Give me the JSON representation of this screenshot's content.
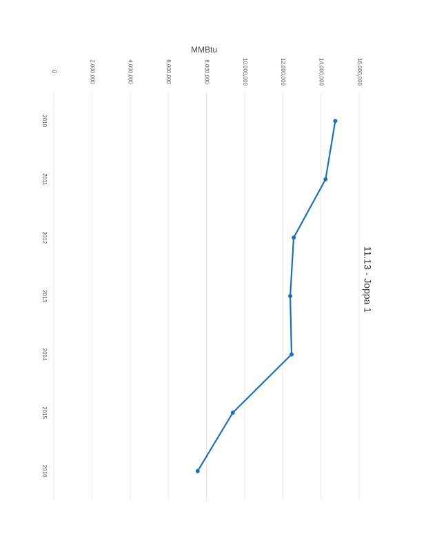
{
  "chart_data": {
    "type": "line",
    "title": "11.13 - Joppa 1",
    "value_axis_label": "MMBtu",
    "categories": [
      "2010",
      "2011",
      "2012",
      "2013",
      "2014",
      "2015",
      "2016"
    ],
    "series": [
      {
        "name": "Joppa 1",
        "color": "#1f6fb4",
        "values": [
          14750000,
          14240000,
          12570000,
          12390000,
          12460000,
          9380000,
          7540000
        ]
      }
    ],
    "ylim": [
      0,
      16000000
    ],
    "yticks": [
      0,
      {
        "value": 2000000,
        "label": "2,000,000"
      },
      {
        "value": 4000000,
        "label": "4,000,000"
      },
      {
        "value": 6000000,
        "label": "6,000,000"
      },
      {
        "value": 8000000,
        "label": "8,000,000"
      },
      {
        "value": 10000000,
        "label": "10,000,000"
      },
      {
        "value": 12000000,
        "label": "12,000,000"
      },
      {
        "value": 14000000,
        "label": "14,000,000"
      },
      {
        "value": 16000000,
        "label": "16,000,000"
      }
    ],
    "grid": true
  }
}
